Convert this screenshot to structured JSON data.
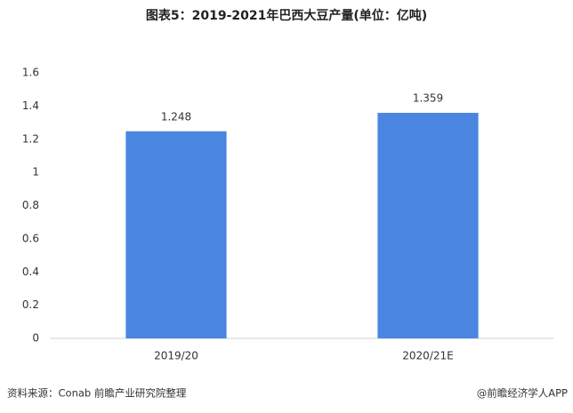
{
  "chart_data": {
    "type": "bar",
    "title": "图表5：2019-2021年巴西大豆产量(单位：亿吨)",
    "categories": [
      "2019/20",
      "2020/21E"
    ],
    "values": [
      1.248,
      1.359
    ],
    "color": "#4a86e0",
    "ylim": [
      0,
      1.6
    ],
    "yticks": [
      0,
      0.2,
      0.4,
      0.6,
      0.8,
      1,
      1.2,
      1.4,
      1.6
    ],
    "grid": false
  },
  "footer": {
    "source": "资料来源：Conab 前瞻产业研究院整理",
    "brand": "@前瞻经济学人APP"
  }
}
